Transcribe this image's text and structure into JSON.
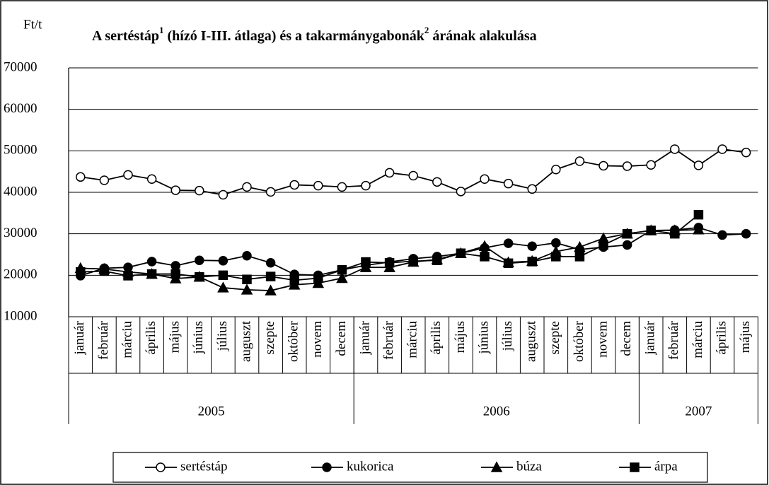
{
  "chart_data": {
    "type": "line",
    "title_segments": [
      {
        "text": "A sertéstáp"
      },
      {
        "text": "1",
        "sup": true
      },
      {
        "text": " (hízó I-III. átlaga) és a takarmánygabonák"
      },
      {
        "text": "2",
        "sup": true
      },
      {
        "text": " árának alakulása"
      }
    ],
    "y_label": "Ft/t",
    "category_groups": [
      {
        "label": "2005",
        "categories": [
          "január",
          "február",
          "márciu",
          "április",
          "május",
          "június",
          "július",
          "auguszt",
          "szepte",
          "október",
          "novem",
          "decem"
        ]
      },
      {
        "label": "2006",
        "categories": [
          "január",
          "február",
          "márciu",
          "április",
          "május",
          "június",
          "július",
          "auguszt",
          "szepte",
          "október",
          "novem",
          "decem"
        ]
      },
      {
        "label": "2007",
        "categories": [
          "január",
          "február",
          "márciu",
          "április",
          "május"
        ]
      }
    ],
    "series": [
      {
        "name": "sertéstáp",
        "color": "#000000",
        "marker": "open-circle",
        "values": [
          43700,
          42900,
          44200,
          43200,
          40500,
          40400,
          39400,
          41300,
          40100,
          41800,
          41600,
          41300,
          41600,
          44700,
          44000,
          42500,
          40200,
          43200,
          42100,
          40800,
          45500,
          47500,
          46400,
          46300,
          46600,
          50400,
          46500,
          50400,
          49600
        ]
      },
      {
        "name": "kukorica",
        "color": "#000000",
        "marker": "circle",
        "values": [
          19900,
          21700,
          21900,
          23300,
          22300,
          23600,
          23500,
          24700,
          23000,
          20200,
          20000,
          21300,
          22400,
          23200,
          24000,
          24500,
          25300,
          26600,
          27700,
          27000,
          27800,
          26200,
          26800,
          27300,
          30800,
          30900,
          31500,
          29700,
          30000
        ]
      },
      {
        "name": "búza",
        "color": "#000000",
        "marker": "triangle",
        "values": [
          21700,
          21500,
          20800,
          20300,
          19200,
          19600,
          17000,
          16500,
          16300,
          17700,
          18100,
          19300,
          21900,
          21900,
          23200,
          23800,
          25300,
          27000,
          23100,
          23400,
          25700,
          26800,
          28900,
          30000,
          30800,
          30800,
          31000,
          null,
          null
        ]
      },
      {
        "name": "árpa",
        "color": "#000000",
        "marker": "square",
        "values": [
          20800,
          21000,
          19900,
          20300,
          20300,
          19600,
          20000,
          19000,
          19700,
          18800,
          19300,
          21300,
          23200,
          23000,
          23400,
          23600,
          25300,
          24500,
          22900,
          23300,
          24500,
          24500,
          27300,
          30000,
          30800,
          30000,
          34600,
          null,
          null
        ]
      }
    ],
    "ylim": [
      10000,
      70000
    ],
    "yticks": [
      10000,
      20000,
      30000,
      40000,
      50000,
      60000,
      70000
    ],
    "grid": true,
    "legend": "bottom"
  }
}
